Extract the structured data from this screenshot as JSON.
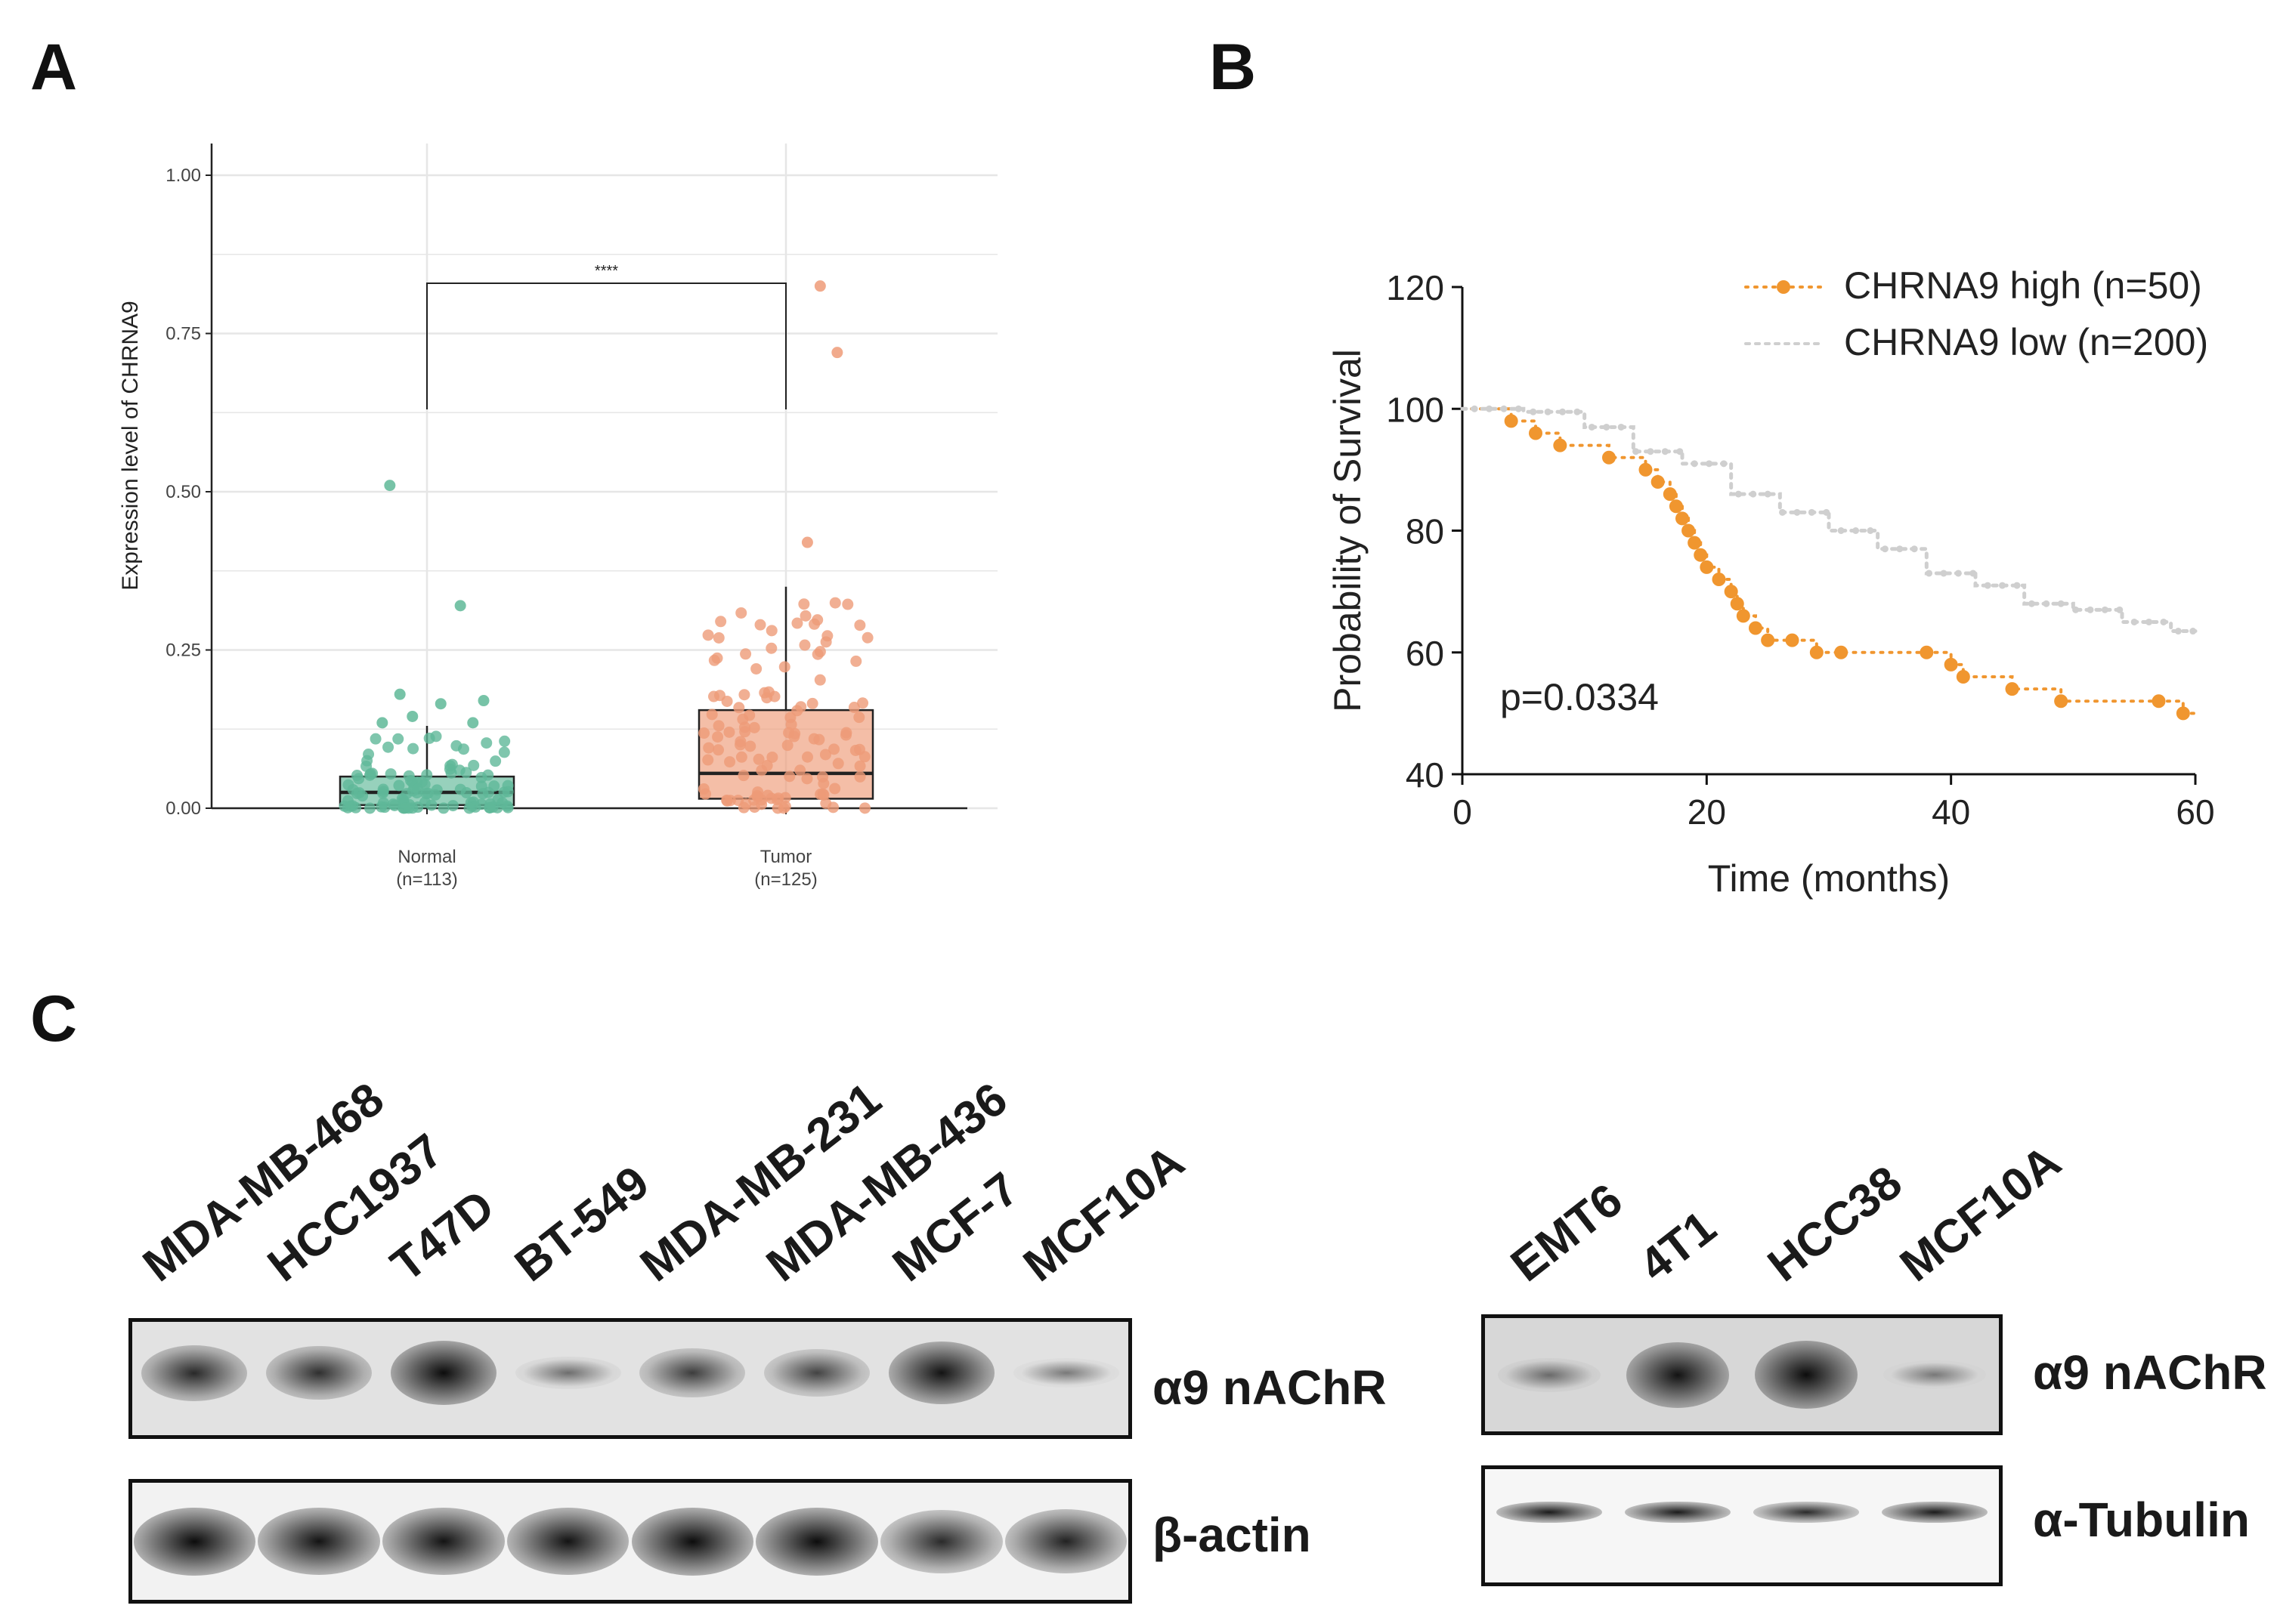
{
  "panels": {
    "a": "A",
    "b": "B",
    "c": "C"
  },
  "panel_a": {
    "chart_data": {
      "type": "scatter",
      "subtype": "box-with-jitter",
      "ylabel": "Expression level of CHRNA9",
      "ylim": [
        0,
        1.0
      ],
      "yticks": [
        "0.00",
        "0.25",
        "0.50",
        "0.75",
        "1.00"
      ],
      "grid": true,
      "significance": "****",
      "groups": [
        {
          "name": "Normal",
          "n_label": "(n=113)",
          "color": "#5fb898",
          "box": {
            "q1": 0.005,
            "median": 0.025,
            "q3": 0.05,
            "whisker_low": 0.0,
            "whisker_high": 0.13
          },
          "outliers": [
            0.51,
            0.32,
            0.18,
            0.17,
            0.165,
            0.145,
            0.135,
            0.135
          ]
        },
        {
          "name": "Tumor",
          "n_label": "(n=125)",
          "color": "#ee9b78",
          "box": {
            "q1": 0.015,
            "median": 0.055,
            "q3": 0.155,
            "whisker_low": 0.0,
            "whisker_high": 0.35
          },
          "outliers": [
            0.825,
            0.72,
            0.42
          ]
        }
      ]
    }
  },
  "panel_b": {
    "chart_data": {
      "type": "line",
      "subtype": "kaplan-meier",
      "xlabel": "Time (months)",
      "ylabel": "Probability of Survival",
      "xlim": [
        0,
        60
      ],
      "ylim": [
        40,
        120
      ],
      "xticks": [
        "0",
        "20",
        "40",
        "60"
      ],
      "yticks": [
        "40",
        "60",
        "80",
        "100",
        "120"
      ],
      "pvalue": "p=0.0334",
      "legend_position": "top-right",
      "series": [
        {
          "name": "CHRNA9 high (n=50)",
          "color": "#f0962f",
          "x": [
            0,
            4,
            6,
            8,
            12,
            15,
            16,
            17,
            17.5,
            18,
            18.5,
            19,
            19.5,
            20,
            21,
            22,
            22.5,
            23,
            24,
            25,
            27,
            29,
            31,
            38,
            40,
            41,
            45,
            49,
            57,
            59,
            60
          ],
          "y": [
            100,
            98,
            96,
            94,
            92,
            90,
            88,
            86,
            84,
            82,
            80,
            78,
            76,
            74,
            72,
            70,
            68,
            66,
            64,
            62,
            62,
            60,
            60,
            60,
            58,
            56,
            54,
            52,
            52,
            50,
            50
          ]
        },
        {
          "name": "CHRNA9 low (n=200)",
          "color": "#cfcfcf",
          "x": [
            0,
            5,
            10,
            14,
            18,
            22,
            26,
            30,
            34,
            38,
            42,
            46,
            50,
            54,
            58,
            60
          ],
          "y": [
            100,
            99.5,
            97,
            93,
            91,
            86,
            83,
            80,
            77,
            73,
            71,
            68,
            67,
            65,
            63.5,
            63.5
          ]
        }
      ]
    }
  },
  "panel_c": {
    "left_blot": {
      "lanes": [
        "MDA-MB-468",
        "HCC1937",
        "T47D",
        "BT-549",
        "MDA-MB-231",
        "MDA-MB-436",
        "MCF-7",
        "MCF10A"
      ],
      "rows": [
        {
          "label": "α9 nAChR",
          "intensities": [
            0.8,
            0.75,
            1.0,
            0.25,
            0.65,
            0.6,
            0.95,
            0.15
          ]
        },
        {
          "label": "β-actin",
          "intensities": [
            1.0,
            0.95,
            0.95,
            0.95,
            1.0,
            1.0,
            0.8,
            0.85
          ]
        }
      ]
    },
    "right_blot": {
      "lanes": [
        "EMT6",
        "4T1",
        "HCC38",
        "MCF10A"
      ],
      "rows": [
        {
          "label": "α9 nAChR",
          "intensities": [
            0.25,
            0.95,
            1.0,
            0.12
          ]
        },
        {
          "label": "α-Tubulin",
          "intensities": [
            0.9,
            0.9,
            0.8,
            0.9
          ]
        }
      ]
    }
  }
}
